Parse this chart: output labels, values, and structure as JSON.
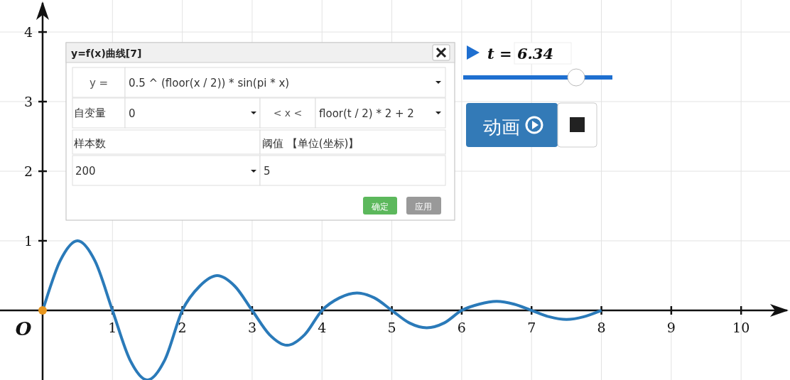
{
  "chart_data": {
    "type": "line",
    "xlim": [
      -0.61,
      10.7
    ],
    "ylim": [
      -1.0,
      4.46
    ],
    "xticks": [
      1,
      2,
      3,
      4,
      5,
      6,
      7,
      8,
      9,
      10
    ],
    "yticks": [
      1,
      2,
      3,
      4
    ],
    "grid": true,
    "x": [
      0,
      0.25,
      0.5,
      0.75,
      1,
      1.25,
      1.5,
      1.75,
      2,
      2.25,
      2.5,
      2.75,
      3,
      3.25,
      3.5,
      3.75,
      4,
      4.25,
      4.5,
      4.75,
      5,
      5.25,
      5.5,
      5.75,
      6,
      6.25,
      6.5,
      6.75,
      7,
      7.25,
      7.5,
      7.75,
      8
    ],
    "series": [
      {
        "color": "#2a7ab9",
        "marker": "none",
        "line_style": "solid",
        "values": [
          0,
          0.71,
          1,
          0.71,
          0,
          -0.71,
          -1,
          -0.71,
          0,
          0.35,
          0.5,
          0.35,
          0,
          -0.35,
          -0.5,
          -0.35,
          0,
          0.18,
          0.25,
          0.18,
          0,
          -0.18,
          -0.25,
          -0.18,
          0,
          0.09,
          0.13,
          0.09,
          0,
          -0.09,
          -0.13,
          -0.09,
          0
        ]
      },
      {
        "type": "scatter",
        "color": "#e8961e",
        "marker": "circle",
        "x": [
          0
        ],
        "values": [
          0
        ]
      }
    ],
    "annotations": [
      "y=f(x)曲线[7]",
      "y =",
      "0.5 ^ (floor(x / 2)) * sin(pi * x)",
      "自变量",
      "0",
      "< x <",
      "floor(t / 2) * 2 + 2",
      "样本数",
      "阈值 【单位(坐标)】",
      "200",
      "5",
      "确定",
      "应用",
      "t = 6.34",
      "动画",
      "O"
    ]
  }
}
